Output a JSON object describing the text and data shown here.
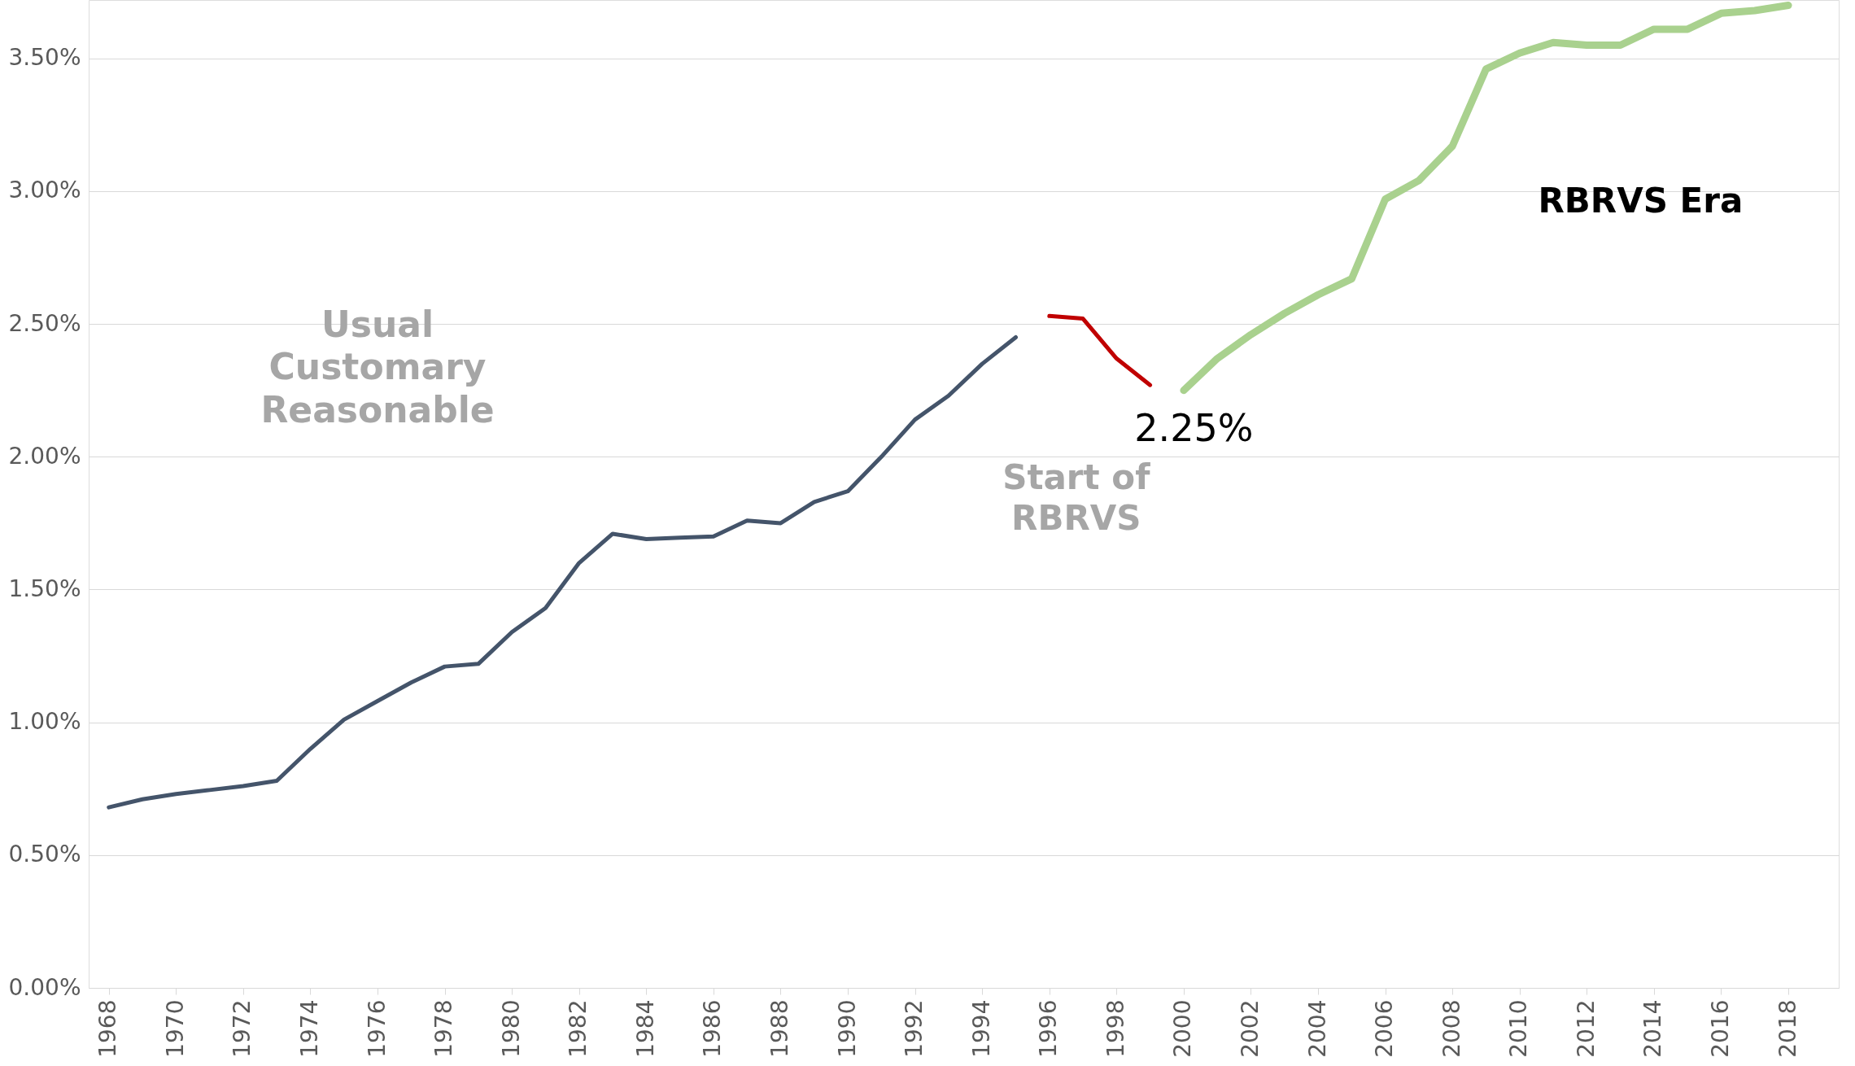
{
  "chart_data": {
    "type": "line",
    "xlim": [
      1967.4,
      2019.5
    ],
    "ylim": [
      0,
      3.72
    ],
    "xticks": [
      1968,
      1970,
      1972,
      1974,
      1976,
      1978,
      1980,
      1982,
      1984,
      1986,
      1988,
      1990,
      1992,
      1994,
      1996,
      1998,
      2000,
      2002,
      2004,
      2006,
      2008,
      2010,
      2012,
      2014,
      2016,
      2018
    ],
    "yticks": [
      {
        "value": 0,
        "label": "0.00%"
      },
      {
        "value": 0.5,
        "label": "0.50%"
      },
      {
        "value": 1,
        "label": "1.00%"
      },
      {
        "value": 1.5,
        "label": "1.50%"
      },
      {
        "value": 2,
        "label": "2.00%"
      },
      {
        "value": 2.5,
        "label": "2.50%"
      },
      {
        "value": 3,
        "label": "3.00%"
      },
      {
        "value": 3.5,
        "label": "3.50%"
      }
    ],
    "grid": "y",
    "line_style": "solid",
    "marker": "none",
    "series": [
      {
        "color": "#44546a",
        "x": [
          1968,
          1969,
          1970,
          1971,
          1972,
          1973,
          1974,
          1975,
          1976,
          1977,
          1978,
          1979,
          1980,
          1981,
          1982,
          1983,
          1984,
          1985,
          1986,
          1987,
          1988,
          1989,
          1990,
          1991,
          1992,
          1993,
          1994,
          1995
        ],
        "values": [
          0.68,
          0.71,
          0.73,
          0.745,
          0.76,
          0.78,
          0.9,
          1.01,
          1.08,
          1.15,
          1.21,
          1.22,
          1.34,
          1.43,
          1.6,
          1.71,
          1.69,
          1.695,
          1.7,
          1.76,
          1.75,
          1.83,
          1.87,
          2.0,
          2.14,
          2.23,
          2.35,
          2.45
        ]
      },
      {
        "color": "#c00000",
        "x": [
          1996,
          1997,
          1998,
          1999
        ],
        "values": [
          2.53,
          2.52,
          2.37,
          2.27
        ]
      },
      {
        "color": "#a9d18e",
        "x": [
          2000,
          2001,
          2002,
          2003,
          2004,
          2005,
          2006,
          2007,
          2008,
          2009,
          2010,
          2011,
          2012,
          2013,
          2014,
          2015,
          2016,
          2017,
          2018
        ],
        "values": [
          2.25,
          2.37,
          2.46,
          2.54,
          2.61,
          2.67,
          2.97,
          3.04,
          3.17,
          3.46,
          3.52,
          3.56,
          3.55,
          3.55,
          3.61,
          3.61,
          3.67,
          3.68,
          3.7
        ]
      }
    ],
    "annotations": [
      "Usual\nCustomary\nReasonable",
      "Start of\nRBRVS",
      "RBRVS Era",
      "2.25%"
    ]
  }
}
